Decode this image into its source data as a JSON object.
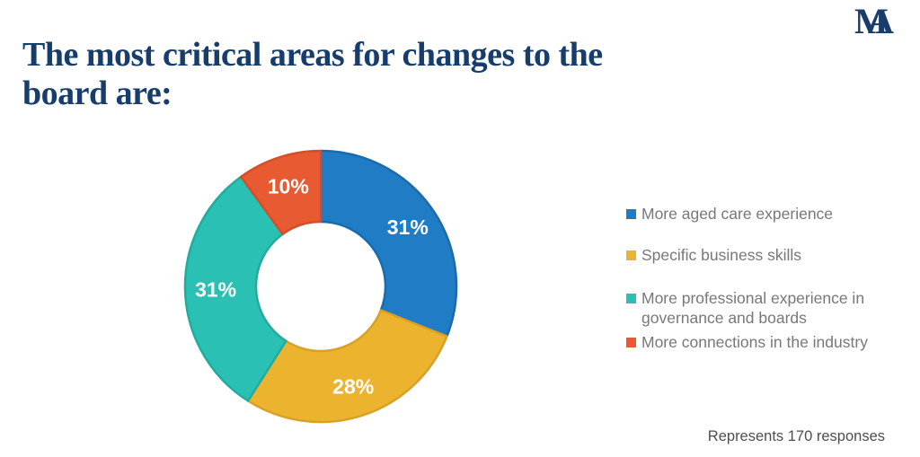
{
  "header": {
    "title_lines": [
      "The most critical areas for changes to the",
      "board are:"
    ],
    "title_color": "#163d6b"
  },
  "logo": {
    "letters": [
      "M",
      "A"
    ],
    "color": "#1b3c6b"
  },
  "chart_data": {
    "type": "pie",
    "subtype": "donut",
    "title": "The most critical areas for changes to the board are:",
    "unit": "percent",
    "start_angle_deg": 0,
    "direction": "clockwise",
    "inner_radius_ratio": 0.48,
    "legend_position": "right",
    "series": [
      {
        "id": "aged-care-experience",
        "name": "More aged care experience",
        "value": 31,
        "label": "31%",
        "color": "#207cc5",
        "stroke": "#1a6bab"
      },
      {
        "id": "specific-business-skills",
        "name": "Specific business skills",
        "value": 28,
        "label": "28%",
        "color": "#ecb42e",
        "stroke": "#d8a126"
      },
      {
        "id": "professional-experience-governance",
        "name": "More professional experience in governance and boards",
        "value": 31,
        "label": "31%",
        "color": "#2ac0b3",
        "stroke": "#22ab9f"
      },
      {
        "id": "connections-industry",
        "name": "More connections in the industry",
        "value": 10,
        "label": "10%",
        "color": "#e85b32",
        "stroke": "#d34e29"
      }
    ],
    "annotations": [
      "Represents 170 responses"
    ]
  },
  "footer": {
    "note": "Represents 170 responses"
  }
}
